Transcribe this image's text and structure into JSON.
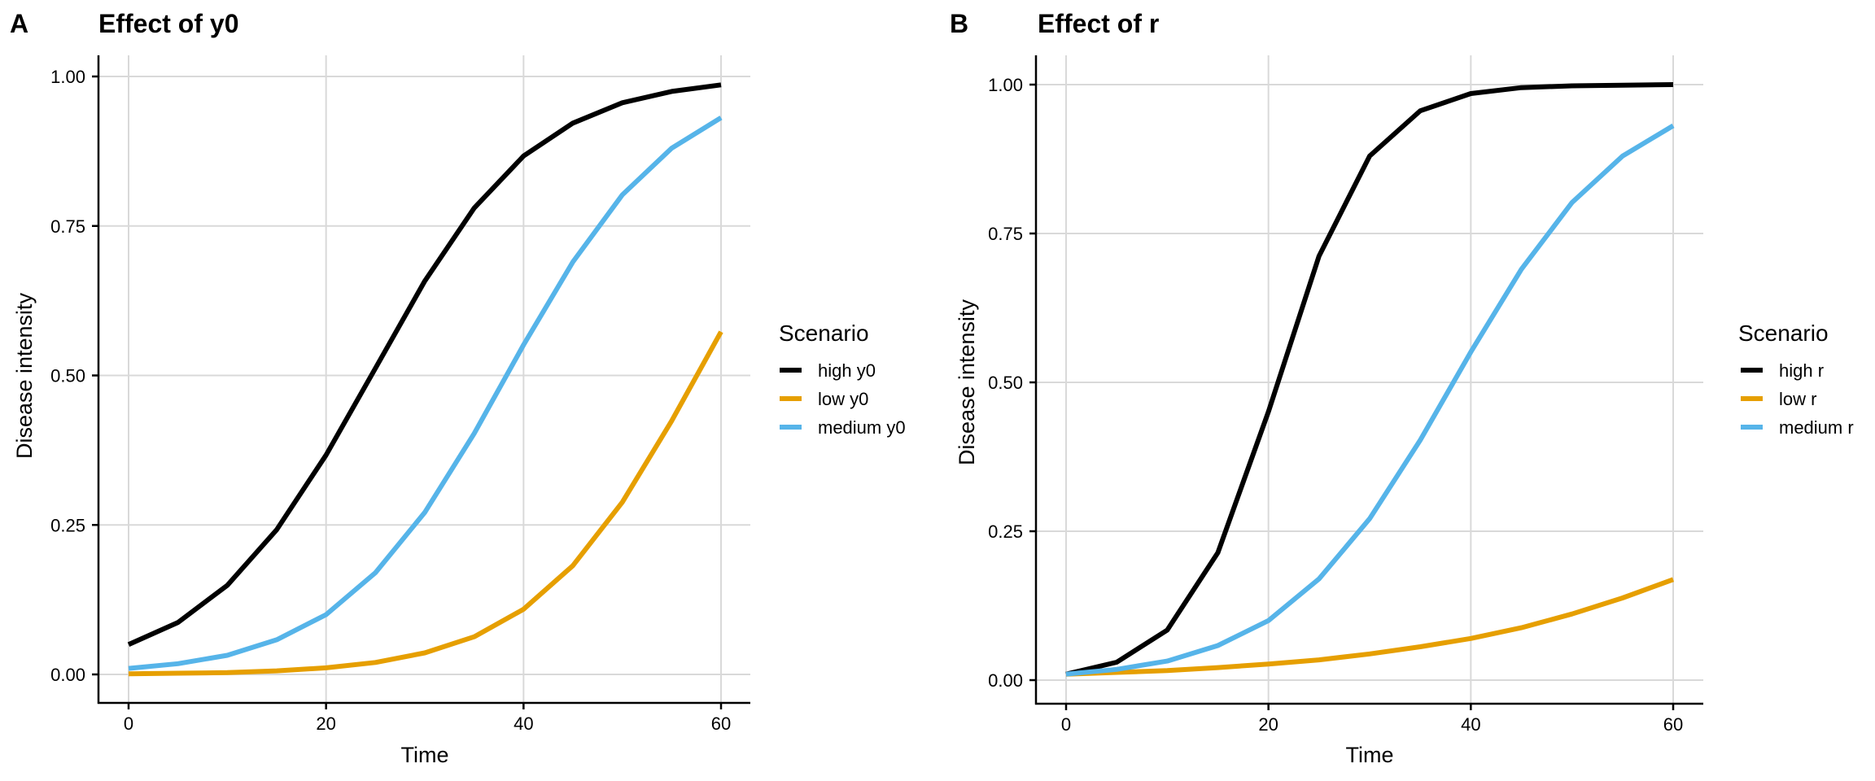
{
  "chart_data": [
    {
      "type": "line",
      "panel_label": "A",
      "title": "Effect of y0",
      "xlabel": "Time",
      "ylabel": "Disease intensity",
      "xlim": [
        0,
        60
      ],
      "ylim": [
        0,
        1
      ],
      "xticks": [
        "0",
        "20",
        "40",
        "60"
      ],
      "xtick_values": [
        0,
        20,
        40,
        60
      ],
      "yticks": [
        "0.00",
        "0.25",
        "0.50",
        "0.75",
        "1.00"
      ],
      "ytick_values": [
        0,
        0.25,
        0.5,
        0.75,
        1
      ],
      "grid": true,
      "legend": {
        "title": "Scenario",
        "position": "right"
      },
      "x": [
        0,
        5,
        10,
        15,
        20,
        25,
        30,
        35,
        40,
        45,
        50,
        55,
        60
      ],
      "series": [
        {
          "name": "high y0",
          "color": "#000000",
          "values": [
            0.05,
            0.087,
            0.149,
            0.242,
            0.367,
            0.512,
            0.658,
            0.78,
            0.867,
            0.922,
            0.956,
            0.975,
            0.986
          ]
        },
        {
          "name": "low y0",
          "color": "#E69F00",
          "values": [
            0.001,
            0.002,
            0.003,
            0.006,
            0.011,
            0.02,
            0.036,
            0.063,
            0.109,
            0.182,
            0.288,
            0.424,
            0.573
          ]
        },
        {
          "name": "medium y0",
          "color": "#56B4E9",
          "values": [
            0.01,
            0.018,
            0.032,
            0.058,
            0.1,
            0.17,
            0.271,
            0.403,
            0.551,
            0.69,
            0.802,
            0.88,
            0.931
          ]
        }
      ]
    },
    {
      "type": "line",
      "panel_label": "B",
      "title": "Effect of r",
      "xlabel": "Time",
      "ylabel": "Disease intensity",
      "xlim": [
        0,
        60
      ],
      "ylim": [
        0,
        1
      ],
      "xticks": [
        "0",
        "20",
        "40",
        "60"
      ],
      "xtick_values": [
        0,
        20,
        40,
        60
      ],
      "yticks": [
        "0.00",
        "0.25",
        "0.50",
        "0.75",
        "1.00"
      ],
      "ytick_values": [
        0,
        0.25,
        0.5,
        0.75,
        1
      ],
      "grid": true,
      "legend": {
        "title": "Scenario",
        "position": "right"
      },
      "x": [
        0,
        5,
        10,
        15,
        20,
        25,
        30,
        35,
        40,
        45,
        50,
        55,
        60
      ],
      "series": [
        {
          "name": "high r",
          "color": "#000000",
          "values": [
            0.01,
            0.03,
            0.084,
            0.214,
            0.451,
            0.712,
            0.88,
            0.956,
            0.985,
            0.995,
            0.998,
            0.999,
            1.0
          ]
        },
        {
          "name": "low r",
          "color": "#E69F00",
          "values": [
            0.01,
            0.013,
            0.016,
            0.021,
            0.027,
            0.034,
            0.044,
            0.056,
            0.07,
            0.088,
            0.111,
            0.138,
            0.169
          ]
        },
        {
          "name": "medium r",
          "color": "#56B4E9",
          "values": [
            0.01,
            0.018,
            0.032,
            0.058,
            0.1,
            0.17,
            0.271,
            0.403,
            0.551,
            0.69,
            0.802,
            0.88,
            0.931
          ]
        }
      ]
    }
  ]
}
